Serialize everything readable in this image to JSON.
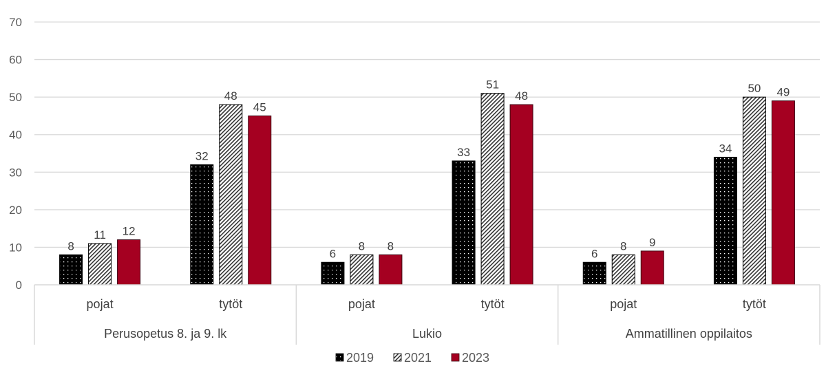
{
  "chart_data": {
    "type": "bar",
    "title": "",
    "xlabel": "",
    "ylabel": "",
    "ylim": [
      0,
      70
    ],
    "yticks": [
      "0",
      "10",
      "20",
      "30",
      "40",
      "50",
      "60",
      "70"
    ],
    "grid": true,
    "legend_position": "bottom",
    "groups": [
      {
        "label": "Perusopetus 8. ja 9. lk",
        "categories": [
          "pojat",
          "tytöt"
        ]
      },
      {
        "label": "Lukio",
        "categories": [
          "pojat",
          "tytöt"
        ]
      },
      {
        "label": "Ammatillinen oppilaitos",
        "categories": [
          "pojat",
          "tytöt"
        ]
      }
    ],
    "categories": [
      "pojat",
      "tytöt",
      "pojat",
      "tytöt",
      "pojat",
      "tytöt"
    ],
    "series": [
      {
        "name": "2019",
        "pattern": "dots",
        "color": "#000000",
        "values": [
          8,
          32,
          6,
          33,
          6,
          34
        ]
      },
      {
        "name": "2021",
        "pattern": "hatch",
        "color": "#404040",
        "values": [
          11,
          48,
          8,
          51,
          8,
          50
        ]
      },
      {
        "name": "2023",
        "pattern": "solid",
        "color": "#a50021",
        "values": [
          12,
          45,
          8,
          48,
          9,
          49
        ]
      }
    ]
  }
}
